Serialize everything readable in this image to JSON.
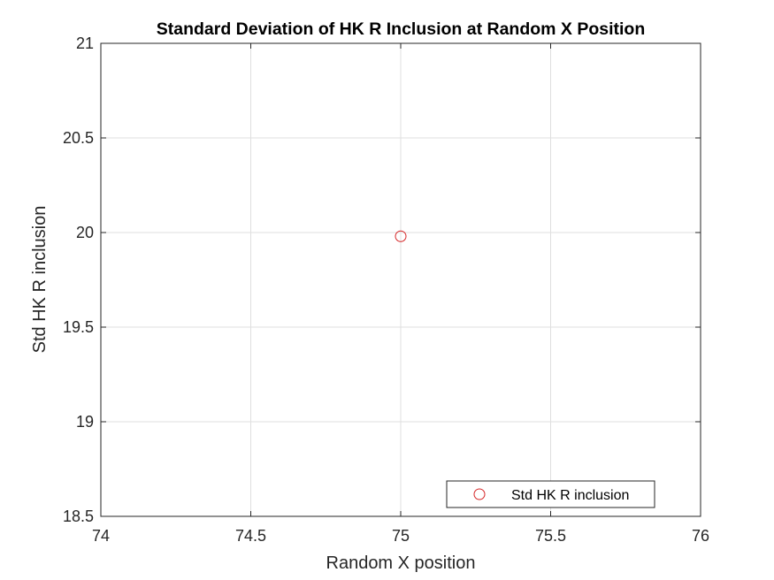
{
  "chart_data": {
    "type": "scatter",
    "title": "Standard Deviation of HK R Inclusion at Random X Position",
    "xlabel": "Random X position",
    "ylabel": "Std HK R inclusion",
    "xlim": [
      74,
      76
    ],
    "ylim": [
      18.5,
      21
    ],
    "xticks": [
      74,
      74.5,
      75,
      75.5,
      76
    ],
    "yticks": [
      18.5,
      19,
      19.5,
      20,
      20.5,
      21
    ],
    "xtick_labels": [
      "74",
      "74.5",
      "75",
      "75.5",
      "76"
    ],
    "ytick_labels": [
      "18.5",
      "19",
      "19.5",
      "20",
      "20.5",
      "21"
    ],
    "grid": true,
    "legend_position": "bottom-right",
    "series": [
      {
        "name": "Std HK R inclusion",
        "marker": "circle-open",
        "color": "#d62728",
        "points": [
          {
            "x": 75,
            "y": 19.98
          }
        ]
      }
    ]
  }
}
